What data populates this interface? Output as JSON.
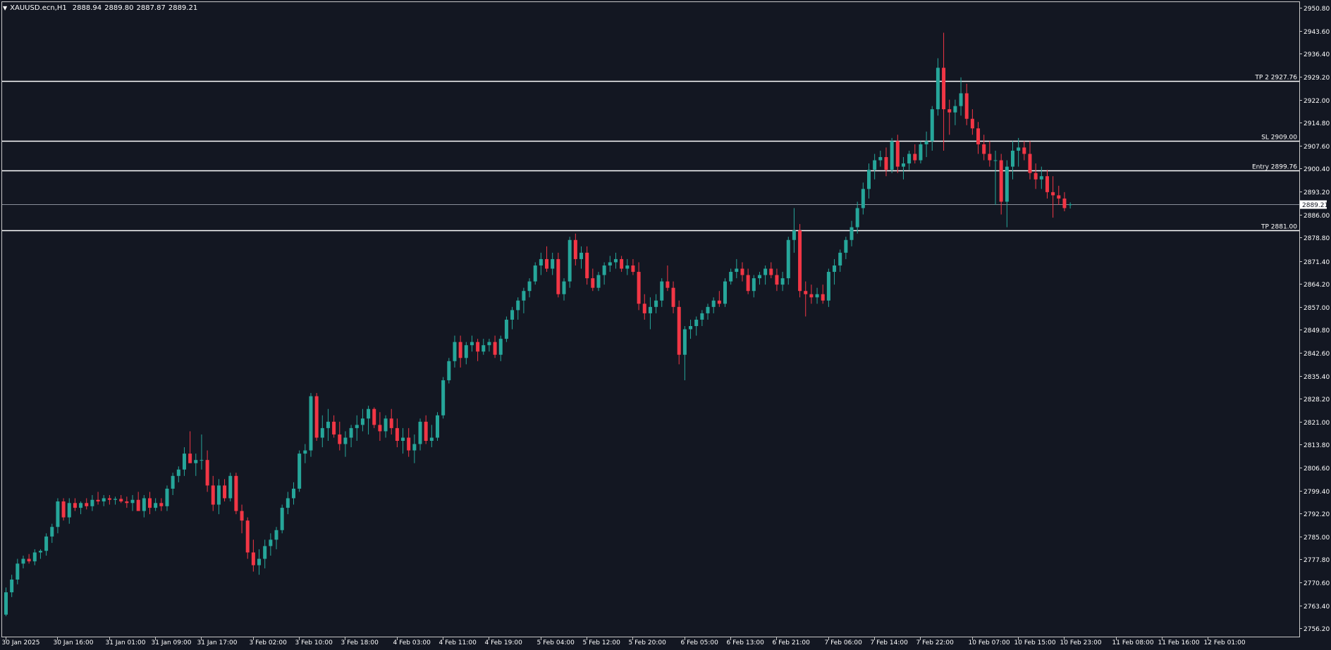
{
  "header": {
    "symbol": "XAUUSD.ecn,H1",
    "open": "2888.94",
    "high": "2889.80",
    "low": "2887.87",
    "close": "2889.21",
    "menu_icon": "triangle-down-icon"
  },
  "colors": {
    "background": "#131722",
    "frame": "#c8c8c8",
    "bull": "#26a69a",
    "bear": "#f23645",
    "level_line": "#ffffff",
    "current_line": "#8a8f9a",
    "text": "#ffffff"
  },
  "levels": [
    {
      "label": "TP 2 2927.76",
      "price": 2927.76
    },
    {
      "label": "SL 2909.00",
      "price": 2909.0
    },
    {
      "label": "Entry 2899.76",
      "price": 2899.76
    },
    {
      "label": "TP 2881.00",
      "price": 2881.0
    }
  ],
  "current_price": {
    "label": "2889.21",
    "price": 2889.21
  },
  "chart_data": {
    "type": "candlestick",
    "ylim": [
      2753.6,
      2952.6
    ],
    "y_ticks": [
      "2950.80",
      "2943.60",
      "2936.40",
      "2929.20",
      "2922.00",
      "2914.80",
      "2907.60",
      "2900.40",
      "2893.20",
      "2886.00",
      "2878.80",
      "2871.40",
      "2864.20",
      "2857.00",
      "2849.80",
      "2842.60",
      "2835.40",
      "2828.20",
      "2821.00",
      "2813.80",
      "2806.60",
      "2799.40",
      "2792.20",
      "2785.00",
      "2777.80",
      "2770.60",
      "2763.40",
      "2756.20"
    ],
    "x_ticks": [
      {
        "label": "30 Jan 2025",
        "index": 0
      },
      {
        "label": "30 Jan 16:00",
        "index": 9
      },
      {
        "label": "31 Jan 01:00",
        "index": 18
      },
      {
        "label": "31 Jan 09:00",
        "index": 26
      },
      {
        "label": "31 Jan 17:00",
        "index": 34
      },
      {
        "label": "3 Feb 02:00",
        "index": 43
      },
      {
        "label": "3 Feb 10:00",
        "index": 51
      },
      {
        "label": "3 Feb 18:00",
        "index": 59
      },
      {
        "label": "4 Feb 03:00",
        "index": 68
      },
      {
        "label": "4 Feb 11:00",
        "index": 76
      },
      {
        "label": "4 Feb 19:00",
        "index": 84
      },
      {
        "label": "5 Feb 04:00",
        "index": 93
      },
      {
        "label": "5 Feb 12:00",
        "index": 101
      },
      {
        "label": "5 Feb 20:00",
        "index": 109
      },
      {
        "label": "6 Feb 05:00",
        "index": 118
      },
      {
        "label": "6 Feb 13:00",
        "index": 126
      },
      {
        "label": "6 Feb 21:00",
        "index": 134
      },
      {
        "label": "7 Feb 06:00",
        "index": 143
      },
      {
        "label": "7 Feb 14:00",
        "index": 151
      },
      {
        "label": "7 Feb 22:00",
        "index": 159
      },
      {
        "label": "10 Feb 07:00",
        "index": 168
      },
      {
        "label": "10 Feb 15:00",
        "index": 176
      },
      {
        "label": "10 Feb 23:00",
        "index": 184
      },
      {
        "label": "11 Feb 08:00",
        "index": 193
      },
      {
        "label": "11 Feb 16:00",
        "index": 201
      },
      {
        "label": "12 Feb 01:00",
        "index": 209
      }
    ],
    "candles": [
      [
        2760.5,
        2769,
        2760,
        2767.5
      ],
      [
        2767.5,
        2773,
        2766,
        2771.5
      ],
      [
        2771.5,
        2778,
        2770,
        2776.5
      ],
      [
        2776.5,
        2779,
        2775,
        2778
      ],
      [
        2778,
        2779.5,
        2776.5,
        2777.2
      ],
      [
        2777.2,
        2781,
        2776,
        2780
      ],
      [
        2780,
        2781,
        2778,
        2780.5
      ],
      [
        2780.5,
        2786,
        2779,
        2785
      ],
      [
        2785,
        2789,
        2783,
        2788
      ],
      [
        2788,
        2797,
        2786,
        2796
      ],
      [
        2796,
        2797,
        2790,
        2791
      ],
      [
        2791,
        2797,
        2789,
        2795.5
      ],
      [
        2795.5,
        2797,
        2793,
        2794
      ],
      [
        2794,
        2796,
        2792,
        2795.5
      ],
      [
        2795.5,
        2797,
        2793.5,
        2794.5
      ],
      [
        2794.5,
        2798,
        2793,
        2796.5
      ],
      [
        2796.5,
        2799,
        2795,
        2796
      ],
      [
        2796,
        2798,
        2794.5,
        2797
      ],
      [
        2797,
        2798,
        2795,
        2796.5
      ],
      [
        2796.5,
        2797.5,
        2795,
        2796.8
      ],
      [
        2796.8,
        2798,
        2795.5,
        2796
      ],
      [
        2796,
        2797.5,
        2794,
        2795.5
      ],
      [
        2795.5,
        2798,
        2793,
        2796.5
      ],
      [
        2796.5,
        2799,
        2794,
        2793
      ],
      [
        2793,
        2798,
        2791,
        2797
      ],
      [
        2797,
        2799,
        2792,
        2794
      ],
      [
        2794,
        2797,
        2793,
        2795.5
      ],
      [
        2795.5,
        2797,
        2793,
        2794.5
      ],
      [
        2794.5,
        2801,
        2793,
        2800
      ],
      [
        2800,
        2805,
        2798,
        2804
      ],
      [
        2804,
        2807,
        2802,
        2806
      ],
      [
        2806,
        2813,
        2804,
        2811
      ],
      [
        2811,
        2818,
        2808,
        2808
      ],
      [
        2808,
        2811,
        2804,
        2809
      ],
      [
        2809,
        2817,
        2806,
        2809
      ],
      [
        2809,
        2812,
        2799,
        2801
      ],
      [
        2801,
        2804,
        2793,
        2795
      ],
      [
        2795,
        2803,
        2792,
        2801
      ],
      [
        2801,
        2803,
        2796,
        2797
      ],
      [
        2797,
        2805,
        2796,
        2804
      ],
      [
        2804,
        2805,
        2792,
        2793
      ],
      [
        2793,
        2795,
        2786,
        2790
      ],
      [
        2790,
        2791,
        2778,
        2780
      ],
      [
        2780,
        2784,
        2774,
        2776
      ],
      [
        2776,
        2781,
        2773,
        2778
      ],
      [
        2778,
        2784,
        2775,
        2782
      ],
      [
        2782,
        2786,
        2779,
        2784
      ],
      [
        2784,
        2788,
        2781,
        2787
      ],
      [
        2787,
        2795,
        2786,
        2794
      ],
      [
        2794,
        2799,
        2792,
        2797
      ],
      [
        2797,
        2802,
        2795,
        2800
      ],
      [
        2800,
        2812,
        2799,
        2811
      ],
      [
        2811,
        2814,
        2808,
        2812
      ],
      [
        2812,
        2830,
        2810,
        2829
      ],
      [
        2829,
        2830,
        2815,
        2816
      ],
      [
        2816,
        2823,
        2813,
        2819
      ],
      [
        2819,
        2825,
        2815,
        2821
      ],
      [
        2821,
        2823,
        2816,
        2817
      ],
      [
        2817,
        2821,
        2812,
        2814
      ],
      [
        2814,
        2818,
        2810,
        2816
      ],
      [
        2816,
        2820,
        2813,
        2819
      ],
      [
        2819,
        2823,
        2815,
        2820
      ],
      [
        2820,
        2825,
        2818,
        2822
      ],
      [
        2822,
        2826,
        2817,
        2825
      ],
      [
        2825,
        2825.5,
        2819,
        2820
      ],
      [
        2820,
        2824,
        2815,
        2818
      ],
      [
        2818,
        2823,
        2816,
        2822
      ],
      [
        2822,
        2825,
        2817,
        2819
      ],
      [
        2819,
        2822,
        2813,
        2815
      ],
      [
        2815,
        2819,
        2811,
        2816
      ],
      [
        2816,
        2819,
        2810,
        2812
      ],
      [
        2812,
        2817,
        2808,
        2814
      ],
      [
        2814,
        2822,
        2812,
        2821
      ],
      [
        2821,
        2823,
        2814,
        2815
      ],
      [
        2815,
        2820,
        2813,
        2816
      ],
      [
        2816,
        2824,
        2815,
        2823
      ],
      [
        2823,
        2835,
        2822,
        2834
      ],
      [
        2834,
        2841,
        2833,
        2840
      ],
      [
        2840,
        2848,
        2838,
        2846
      ],
      [
        2846,
        2848,
        2838,
        2841
      ],
      [
        2841,
        2846,
        2839,
        2845
      ],
      [
        2845,
        2848,
        2843,
        2846
      ],
      [
        2846,
        2847,
        2840,
        2843
      ],
      [
        2843,
        2847,
        2842,
        2845
      ],
      [
        2845,
        2847,
        2843,
        2846
      ],
      [
        2846,
        2848,
        2841,
        2842
      ],
      [
        2842,
        2848,
        2840,
        2847
      ],
      [
        2847,
        2854,
        2846,
        2853
      ],
      [
        2853,
        2857,
        2850,
        2856
      ],
      [
        2856,
        2860,
        2853,
        2859
      ],
      [
        2859,
        2863,
        2855,
        2862
      ],
      [
        2862,
        2866,
        2860,
        2865
      ],
      [
        2865,
        2871,
        2864,
        2870
      ],
      [
        2870,
        2874,
        2867,
        2872
      ],
      [
        2872,
        2876,
        2868,
        2869
      ],
      [
        2869,
        2874,
        2867,
        2872
      ],
      [
        2872,
        2874,
        2860,
        2861
      ],
      [
        2861,
        2866,
        2859,
        2865
      ],
      [
        2865,
        2879,
        2863,
        2878
      ],
      [
        2878,
        2880,
        2870,
        2872
      ],
      [
        2872,
        2876,
        2869,
        2874
      ],
      [
        2874,
        2876,
        2864,
        2866
      ],
      [
        2866,
        2869,
        2862,
        2863
      ],
      [
        2863,
        2868,
        2862,
        2867
      ],
      [
        2867,
        2871,
        2864,
        2870
      ],
      [
        2870,
        2873,
        2868,
        2871
      ],
      [
        2871,
        2874,
        2869,
        2872
      ],
      [
        2872,
        2873,
        2868,
        2869
      ],
      [
        2869,
        2872,
        2867,
        2870
      ],
      [
        2870,
        2872,
        2867,
        2868
      ],
      [
        2868,
        2871,
        2856,
        2858
      ],
      [
        2858,
        2861,
        2853,
        2855
      ],
      [
        2855,
        2860,
        2850,
        2857
      ],
      [
        2857,
        2861,
        2855,
        2859
      ],
      [
        2859,
        2866,
        2857,
        2865
      ],
      [
        2865,
        2870,
        2862,
        2863
      ],
      [
        2863,
        2865,
        2855,
        2857
      ],
      [
        2857,
        2859,
        2839,
        2842
      ],
      [
        2842,
        2851,
        2834,
        2850
      ],
      [
        2850,
        2853,
        2847,
        2851
      ],
      [
        2851,
        2854,
        2848,
        2853
      ],
      [
        2853,
        2856,
        2851,
        2855
      ],
      [
        2855,
        2858,
        2853,
        2857
      ],
      [
        2857,
        2860,
        2855,
        2859
      ],
      [
        2859,
        2862,
        2857,
        2858
      ],
      [
        2858,
        2866,
        2857,
        2865
      ],
      [
        2865,
        2869,
        2864,
        2868
      ],
      [
        2868,
        2872,
        2866,
        2869
      ],
      [
        2869,
        2871,
        2865,
        2867
      ],
      [
        2867,
        2869,
        2861,
        2862
      ],
      [
        2862,
        2867,
        2860,
        2866
      ],
      [
        2866,
        2868,
        2864,
        2867
      ],
      [
        2867,
        2870,
        2864,
        2869
      ],
      [
        2869,
        2871,
        2866,
        2867
      ],
      [
        2867,
        2869,
        2862,
        2864
      ],
      [
        2864,
        2868,
        2862,
        2866
      ],
      [
        2866,
        2879,
        2864,
        2878
      ],
      [
        2878,
        2888,
        2874,
        2881
      ],
      [
        2881,
        2883,
        2860,
        2862
      ],
      [
        2862,
        2865,
        2854,
        2861
      ],
      [
        2861,
        2864,
        2858,
        2860
      ],
      [
        2860,
        2863,
        2858,
        2861
      ],
      [
        2861,
        2864,
        2858,
        2859
      ],
      [
        2859,
        2869,
        2857,
        2868
      ],
      [
        2868,
        2872,
        2864,
        2870
      ],
      [
        2870,
        2875,
        2868,
        2874
      ],
      [
        2874,
        2879,
        2872,
        2878
      ],
      [
        2878,
        2884,
        2876,
        2882
      ],
      [
        2882,
        2890,
        2880,
        2888
      ],
      [
        2888,
        2896,
        2886,
        2894
      ],
      [
        2894,
        2902,
        2891,
        2900
      ],
      [
        2900,
        2905,
        2897,
        2903
      ],
      [
        2903,
        2906,
        2901,
        2904
      ],
      [
        2904,
        2907,
        2898,
        2900
      ],
      [
        2900,
        2910,
        2899,
        2909
      ],
      [
        2909,
        2911,
        2899,
        2901
      ],
      [
        2901,
        2904,
        2897,
        2902
      ],
      [
        2902,
        2906,
        2900,
        2905
      ],
      [
        2905,
        2908,
        2902,
        2903
      ],
      [
        2903,
        2909,
        2902,
        2908
      ],
      [
        2908,
        2912,
        2904,
        2909
      ],
      [
        2909,
        2920,
        2906,
        2919
      ],
      [
        2919,
        2935,
        2917,
        2932
      ],
      [
        2932,
        2943,
        2906,
        2919
      ],
      [
        2919,
        2922,
        2911,
        2918
      ],
      [
        2918,
        2922,
        2914,
        2920
      ],
      [
        2920,
        2929,
        2917,
        2924
      ],
      [
        2924,
        2927,
        2914,
        2916
      ],
      [
        2916,
        2919,
        2911,
        2913
      ],
      [
        2913,
        2915,
        2905,
        2908
      ],
      [
        2908,
        2911,
        2903,
        2905
      ],
      [
        2905,
        2909,
        2901,
        2903
      ],
      [
        2903,
        2906,
        2889,
        2903
      ],
      [
        2903,
        2905,
        2886,
        2890
      ],
      [
        2890,
        2903,
        2882,
        2901
      ],
      [
        2901,
        2909,
        2897,
        2906
      ],
      [
        2906,
        2910,
        2901,
        2907
      ],
      [
        2907,
        2909,
        2903,
        2905
      ],
      [
        2905,
        2909,
        2897,
        2899
      ],
      [
        2899,
        2902,
        2894,
        2897
      ],
      [
        2897,
        2901,
        2894,
        2898
      ],
      [
        2898,
        2900,
        2891,
        2893
      ],
      [
        2893,
        2898,
        2885,
        2892
      ],
      [
        2892,
        2895,
        2889,
        2891
      ],
      [
        2891,
        2893,
        2887,
        2888
      ],
      [
        2888.94,
        2889.8,
        2887.87,
        2889.21
      ]
    ]
  }
}
